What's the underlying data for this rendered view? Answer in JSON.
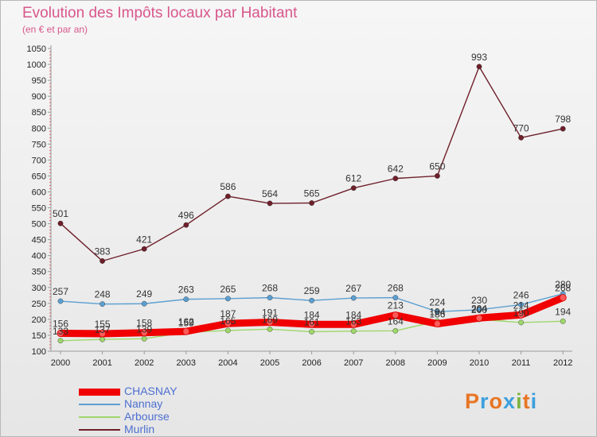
{
  "header": {
    "title": "Evolution des Impôts locaux par Habitant",
    "subtitle": "(en € et par an)"
  },
  "logo": {
    "text": "Proxiti",
    "colors": [
      "#e87524",
      "#3da0dd",
      "#e87524",
      "#3da0dd",
      "#7cb342",
      "#e87524",
      "#3da0dd"
    ]
  },
  "chart_data": {
    "type": "line",
    "title": "Evolution des Impôts locaux par Habitant",
    "subtitle": "(en € et par an)",
    "xlabel": "",
    "ylabel": "",
    "x": [
      "2000",
      "2001",
      "2002",
      "2003",
      "2004",
      "2005",
      "2006",
      "2007",
      "2008",
      "2009",
      "2010",
      "2011",
      "2012"
    ],
    "ylim": [
      100,
      1050
    ],
    "ystep": 50,
    "yticks": [
      "100",
      "150",
      "200",
      "250",
      "300",
      "350",
      "400",
      "450",
      "500",
      "550",
      "600",
      "650",
      "700",
      "750",
      "800",
      "850",
      "900",
      "950",
      "1000",
      "1050"
    ],
    "grid": false,
    "legend_position": "bottom-left",
    "series": [
      {
        "name": "Murlin",
        "color": "#6e1f2a",
        "values": [
          501,
          383,
          421,
          496,
          586,
          564,
          565,
          612,
          642,
          650,
          993,
          770,
          798
        ],
        "labels": [
          "501",
          "383",
          "421",
          "496",
          "586",
          "564",
          "565",
          "612",
          "642",
          "650",
          "993",
          "770",
          "798"
        ]
      },
      {
        "name": "Nannay",
        "color": "#5b9fd1",
        "values": [
          257,
          248,
          249,
          263,
          265,
          268,
          259,
          267,
          268,
          224,
          230,
          246,
          280
        ],
        "labels": [
          "257",
          "248",
          "249",
          "263",
          "265",
          "268",
          "259",
          "267",
          "268",
          "224",
          "230",
          "246",
          "280"
        ]
      },
      {
        "name": "Arbourse",
        "color": "#9ed76a",
        "values": [
          133,
          137,
          139,
          159,
          165,
          169,
          161,
          163,
          164,
          194,
          200,
          190,
          194
        ],
        "labels": [
          "133",
          "137",
          "139",
          "159",
          "165",
          "169",
          "161",
          "163",
          "164",
          "194",
          "200",
          "190",
          "194"
        ]
      },
      {
        "name": "CHASNAY",
        "color": "#f00000",
        "values": [
          156,
          155,
          158,
          162,
          187,
          191,
          184,
          184,
          213,
          186,
          204,
          214,
          268
        ],
        "labels": [
          "156",
          "155",
          "158",
          "162",
          "187",
          "191",
          "184",
          "184",
          "213",
          "186",
          "204",
          "214",
          "268"
        ]
      }
    ],
    "legend": [
      {
        "name": "CHASNAY",
        "color": "#f00000",
        "width": 9
      },
      {
        "name": "Nannay",
        "color": "#5b9fd1",
        "width": 2
      },
      {
        "name": "Arbourse",
        "color": "#9ed76a",
        "width": 2
      },
      {
        "name": "Murlin",
        "color": "#6e1f2a",
        "width": 2
      }
    ]
  }
}
